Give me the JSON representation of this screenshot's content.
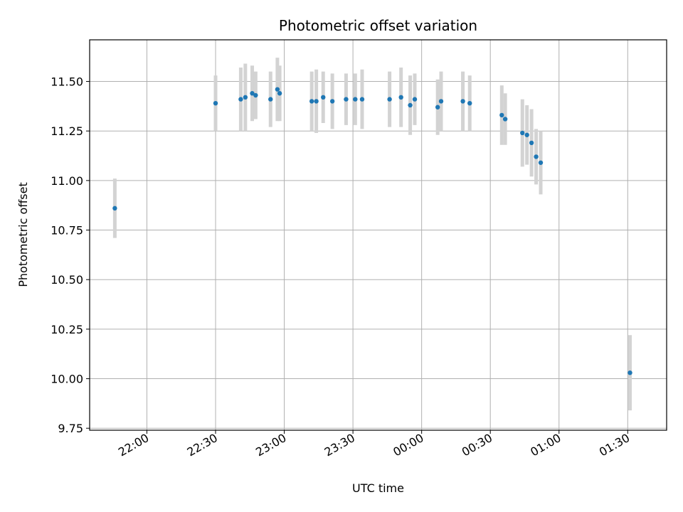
{
  "chart_data": {
    "type": "scatter",
    "title": "Photometric offset variation",
    "xlabel": "UTC time",
    "ylabel": "Photometric offset",
    "x_ticks": [
      "22:00",
      "22:30",
      "23:00",
      "23:30",
      "00:00",
      "00:30",
      "01:00",
      "01:30"
    ],
    "x_tick_minutes": [
      0,
      30,
      60,
      90,
      120,
      150,
      180,
      210
    ],
    "y_ticks": [
      "9.75",
      "10.00",
      "10.25",
      "10.50",
      "10.75",
      "11.00",
      "11.25",
      "11.50"
    ],
    "xlim_minutes": [
      -25,
      227
    ],
    "ylim": [
      9.74,
      11.71
    ],
    "grid": true,
    "colors": {
      "marker": "#1f77b4",
      "errorbar": "#d3d3d3",
      "grid": "#b0b0b0"
    },
    "points": [
      {
        "t": -14,
        "y": 10.86,
        "err": 0.15
      },
      {
        "t": 30,
        "y": 11.39,
        "err": 0.14
      },
      {
        "t": 41,
        "y": 11.41,
        "err": 0.16
      },
      {
        "t": 43,
        "y": 11.42,
        "err": 0.17
      },
      {
        "t": 46,
        "y": 11.44,
        "err": 0.14
      },
      {
        "t": 47.5,
        "y": 11.43,
        "err": 0.12
      },
      {
        "t": 54,
        "y": 11.41,
        "err": 0.14
      },
      {
        "t": 57,
        "y": 11.46,
        "err": 0.16
      },
      {
        "t": 58,
        "y": 11.44,
        "err": 0.14
      },
      {
        "t": 72,
        "y": 11.4,
        "err": 0.15
      },
      {
        "t": 74,
        "y": 11.4,
        "err": 0.16
      },
      {
        "t": 77,
        "y": 11.42,
        "err": 0.13
      },
      {
        "t": 81,
        "y": 11.4,
        "err": 0.14
      },
      {
        "t": 87,
        "y": 11.41,
        "err": 0.13
      },
      {
        "t": 91,
        "y": 11.41,
        "err": 0.13
      },
      {
        "t": 94,
        "y": 11.41,
        "err": 0.15
      },
      {
        "t": 106,
        "y": 11.41,
        "err": 0.14
      },
      {
        "t": 111,
        "y": 11.42,
        "err": 0.15
      },
      {
        "t": 115,
        "y": 11.38,
        "err": 0.15
      },
      {
        "t": 117,
        "y": 11.41,
        "err": 0.13
      },
      {
        "t": 127,
        "y": 11.37,
        "err": 0.14
      },
      {
        "t": 128.5,
        "y": 11.4,
        "err": 0.15
      },
      {
        "t": 138,
        "y": 11.4,
        "err": 0.15
      },
      {
        "t": 141,
        "y": 11.39,
        "err": 0.14
      },
      {
        "t": 155,
        "y": 11.33,
        "err": 0.15
      },
      {
        "t": 156.5,
        "y": 11.31,
        "err": 0.13
      },
      {
        "t": 164,
        "y": 11.24,
        "err": 0.17
      },
      {
        "t": 166,
        "y": 11.23,
        "err": 0.15
      },
      {
        "t": 168,
        "y": 11.19,
        "err": 0.17
      },
      {
        "t": 170,
        "y": 11.12,
        "err": 0.14
      },
      {
        "t": 172,
        "y": 11.09,
        "err": 0.16
      },
      {
        "t": 211,
        "y": 10.03,
        "err": 0.19
      }
    ]
  }
}
